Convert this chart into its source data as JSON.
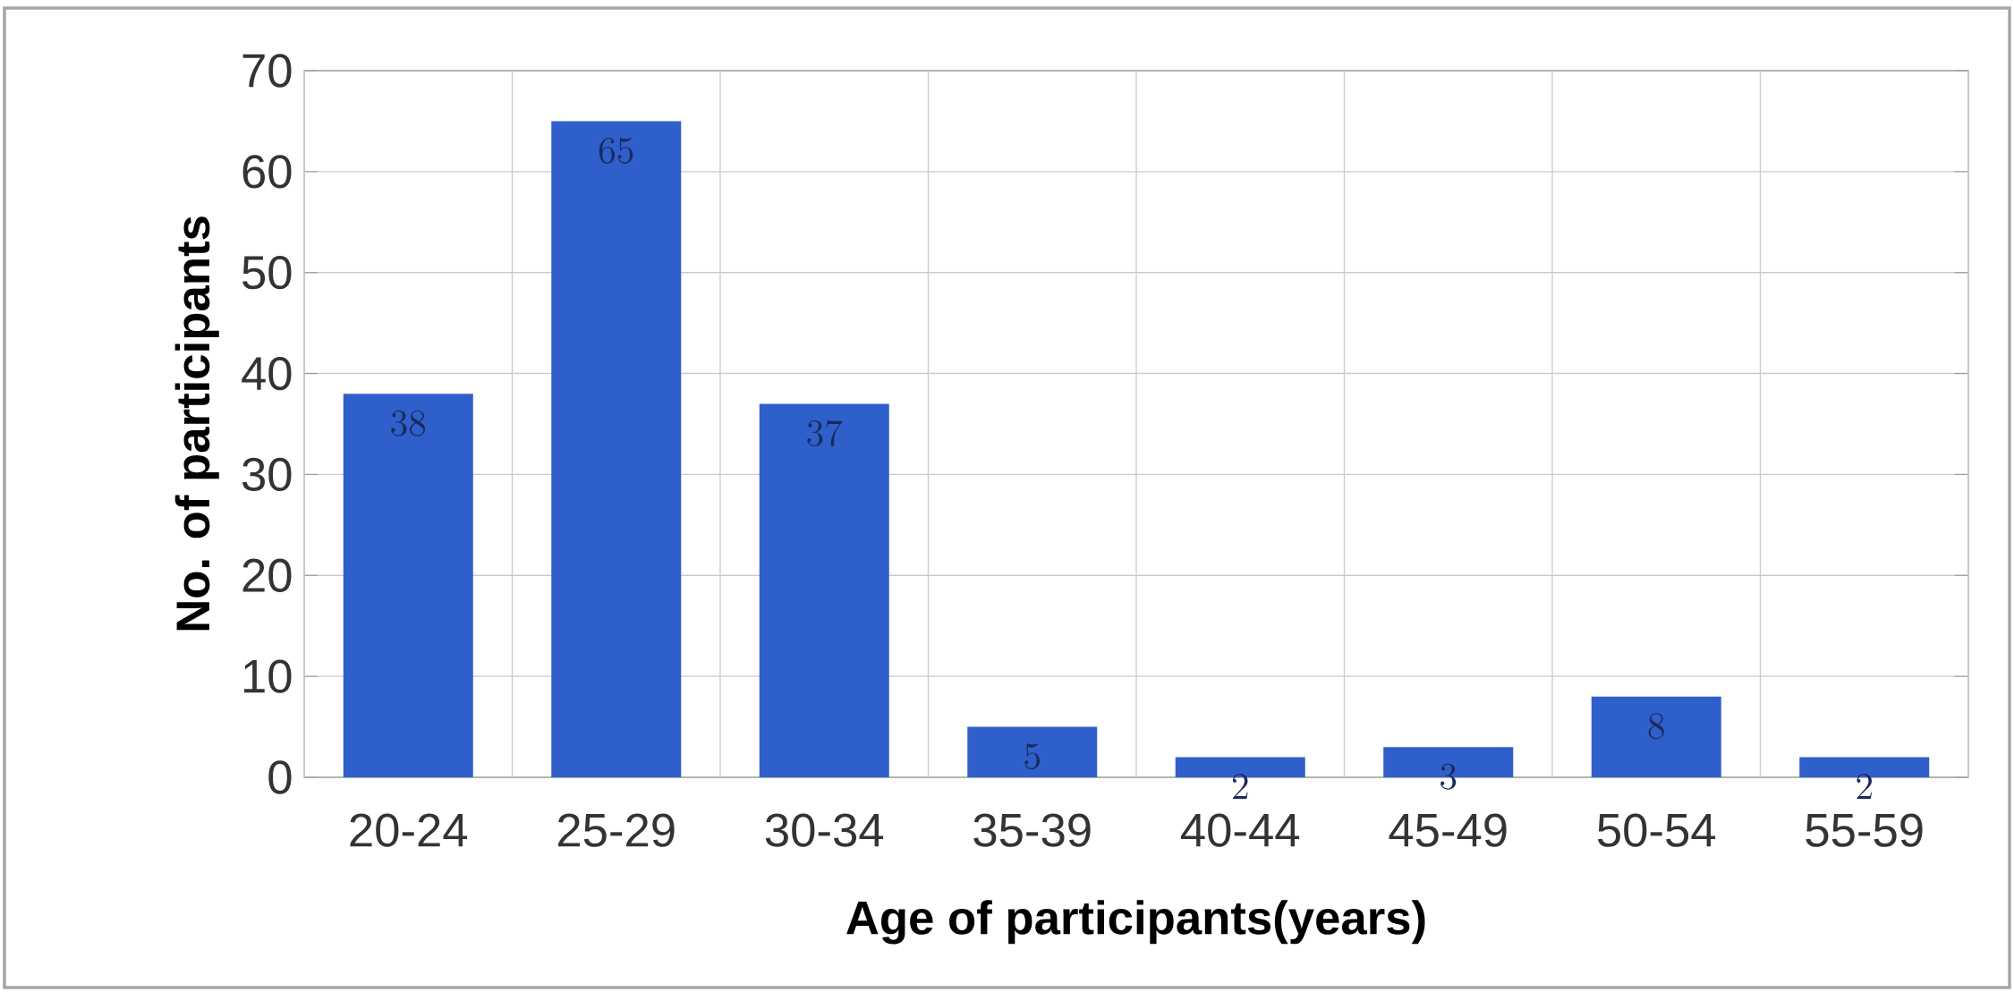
{
  "chart_data": {
    "type": "bar",
    "xlabel": "Age of participants(years)",
    "ylabel": "No. of participants",
    "categories": [
      "20-24",
      "25-29",
      "30-34",
      "35-39",
      "40-44",
      "45-49",
      "50-54",
      "55-59"
    ],
    "values": [
      38,
      65,
      37,
      5,
      2,
      3,
      8,
      2
    ],
    "color": "#2f5fcb",
    "ylim": [
      0,
      70
    ],
    "yticks": [
      0,
      10,
      20,
      30,
      40,
      50,
      60,
      70
    ],
    "grid": true,
    "data_labels": true
  }
}
